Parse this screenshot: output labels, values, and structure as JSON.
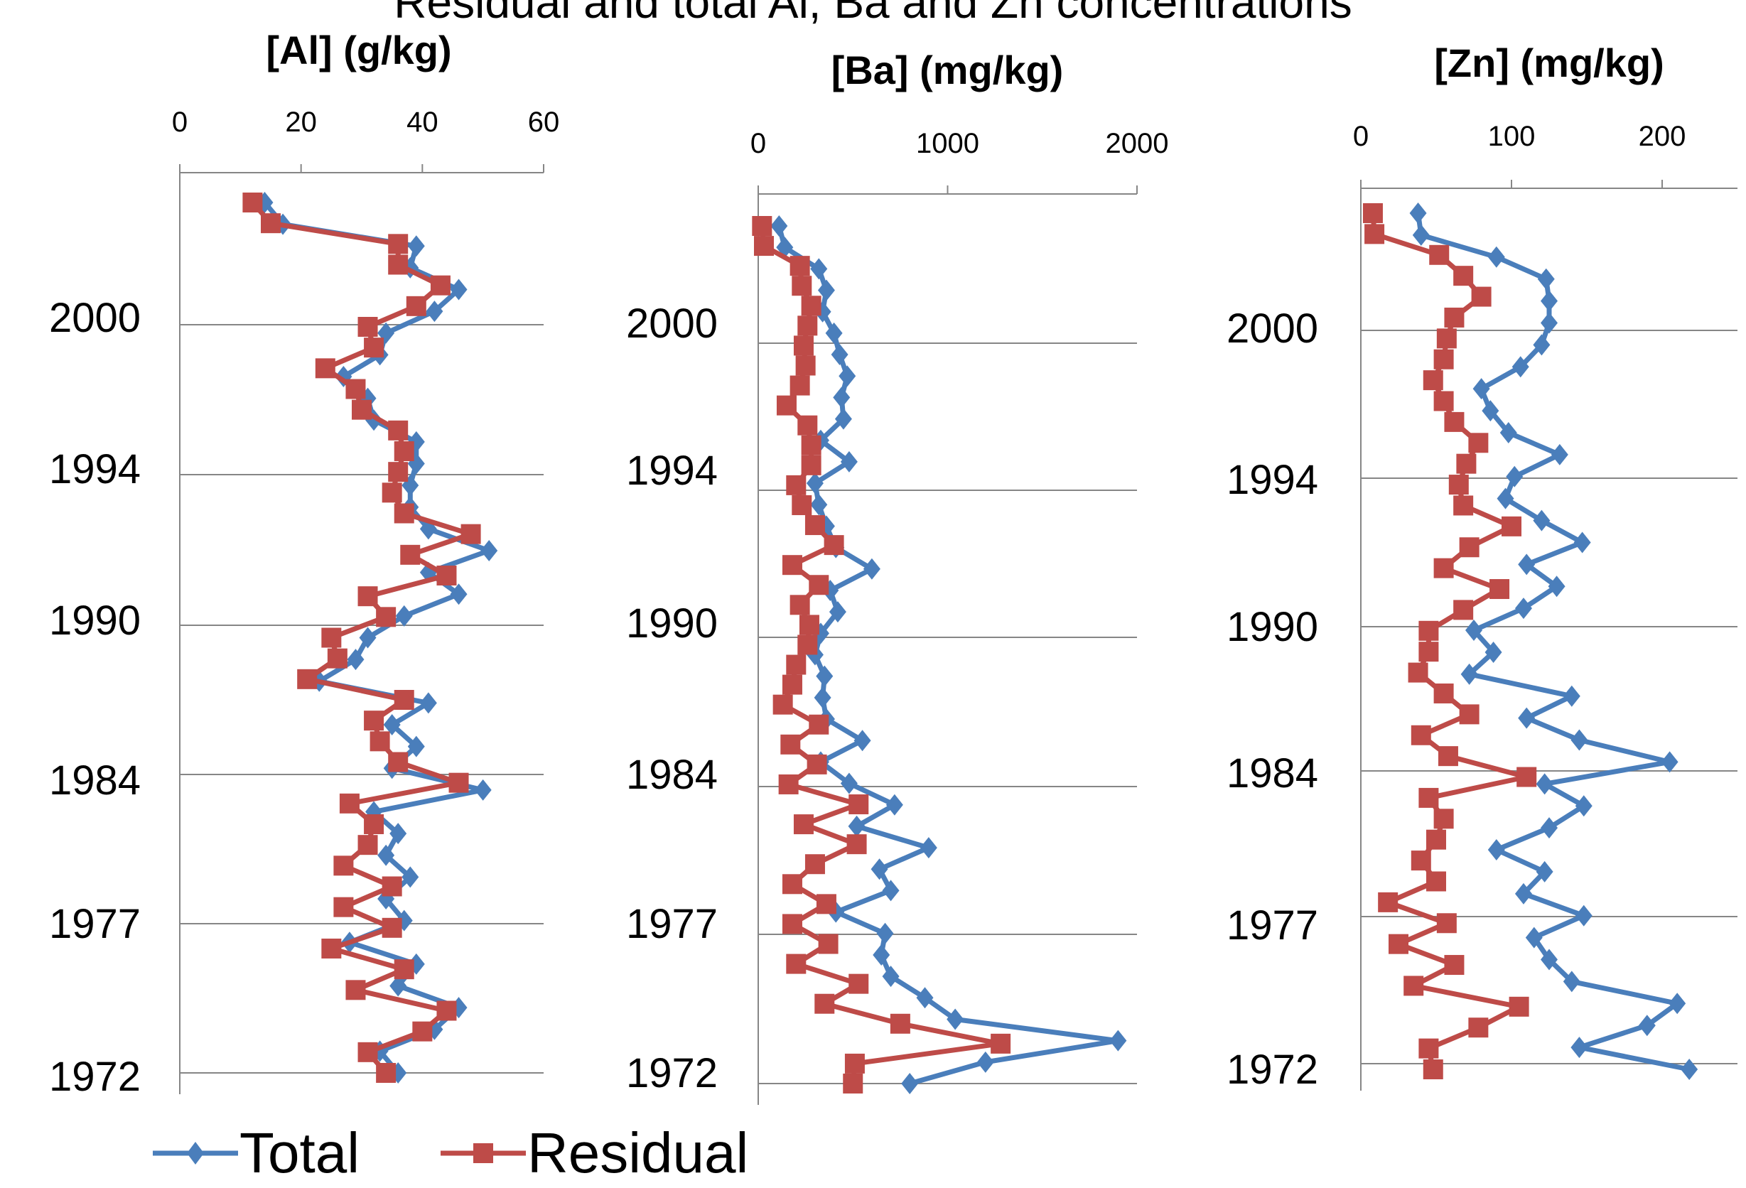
{
  "title": "Residual and total Al, Ba and Zn concentrations",
  "colors": {
    "total": "#4a7ebb",
    "residual": "#be4b48"
  },
  "legend": {
    "total": "Total",
    "residual": "Residual"
  },
  "chart_data": [
    {
      "type": "line",
      "title": "[Al] (g/kg)",
      "xlabel": "[Al] (g/kg)",
      "x_ticks": [
        "0",
        "20",
        "40",
        "60"
      ],
      "xlim": [
        0,
        60
      ],
      "x_axis_position": "top",
      "y_ticks": [
        "2000",
        "1994",
        "1990",
        "1984",
        "1977",
        "1972"
      ],
      "grid": true,
      "legend_position": "bottom",
      "series": [
        {
          "name": "Total",
          "marker": "diamond",
          "values": [
            14,
            17,
            39,
            38,
            46,
            42,
            34,
            33,
            27,
            31,
            32,
            39,
            39,
            38,
            38,
            41,
            51,
            41,
            46,
            37,
            31,
            29,
            23,
            41,
            35,
            39,
            35,
            50,
            32,
            36,
            34,
            38,
            34,
            37,
            28,
            39,
            36,
            46,
            42,
            33,
            36
          ]
        },
        {
          "name": "Residual",
          "marker": "square",
          "values": [
            12,
            15,
            36,
            36,
            43,
            39,
            31,
            32,
            24,
            29,
            30,
            36,
            37,
            36,
            35,
            37,
            48,
            38,
            44,
            31,
            34,
            25,
            26,
            21,
            37,
            32,
            33,
            36,
            46,
            28,
            32,
            31,
            27,
            35,
            27,
            35,
            25,
            37,
            29,
            44,
            40,
            31,
            34
          ]
        }
      ]
    },
    {
      "type": "line",
      "title": "[Ba] (mg/kg)",
      "xlabel": "[Ba] (mg/kg)",
      "x_ticks": [
        "0",
        "1000",
        "2000"
      ],
      "xlim": [
        0,
        2000
      ],
      "x_axis_position": "top",
      "y_ticks": [
        "2000",
        "1994",
        "1990",
        "1984",
        "1977",
        "1972"
      ],
      "grid": true,
      "series": [
        {
          "name": "Total",
          "marker": "diamond",
          "values": [
            110,
            140,
            320,
            360,
            340,
            400,
            430,
            470,
            440,
            450,
            330,
            480,
            300,
            320,
            360,
            410,
            600,
            380,
            420,
            330,
            300,
            350,
            340,
            360,
            550,
            330,
            480,
            720,
            520,
            900,
            640,
            700,
            410,
            670,
            650,
            700,
            880,
            1040,
            1900,
            1200,
            800
          ]
        },
        {
          "name": "Residual",
          "marker": "square",
          "values": [
            20,
            30,
            220,
            230,
            280,
            260,
            240,
            250,
            220,
            150,
            260,
            280,
            280,
            200,
            230,
            300,
            400,
            180,
            320,
            220,
            270,
            260,
            200,
            180,
            130,
            320,
            170,
            310,
            160,
            530,
            240,
            520,
            300,
            180,
            360,
            180,
            370,
            200,
            530,
            350,
            750,
            1280,
            510,
            500
          ]
        }
      ]
    },
    {
      "type": "line",
      "title": "[Zn] (mg/kg)",
      "xlabel": "[Zn] (mg/kg)",
      "x_ticks": [
        "0",
        "100",
        "200"
      ],
      "xlim": [
        0,
        250
      ],
      "x_axis_position": "top",
      "y_ticks": [
        "2000",
        "1994",
        "1990",
        "1984",
        "1977",
        "1972"
      ],
      "grid": true,
      "series": [
        {
          "name": "Total",
          "marker": "diamond",
          "values": [
            38,
            40,
            90,
            123,
            125,
            125,
            120,
            106,
            80,
            86,
            98,
            132,
            102,
            96,
            120,
            147,
            110,
            130,
            108,
            75,
            88,
            72,
            140,
            110,
            145,
            205,
            122,
            148,
            125,
            90,
            122,
            108,
            148,
            115,
            125,
            140,
            210,
            190,
            145,
            218
          ]
        },
        {
          "name": "Residual",
          "marker": "square",
          "values": [
            8,
            9,
            52,
            68,
            80,
            62,
            57,
            55,
            48,
            55,
            62,
            78,
            70,
            65,
            68,
            100,
            72,
            55,
            92,
            68,
            45,
            45,
            38,
            55,
            72,
            40,
            58,
            110,
            45,
            55,
            50,
            40,
            50,
            18,
            57,
            25,
            62,
            35,
            105,
            78,
            45,
            48
          ]
        }
      ]
    }
  ]
}
